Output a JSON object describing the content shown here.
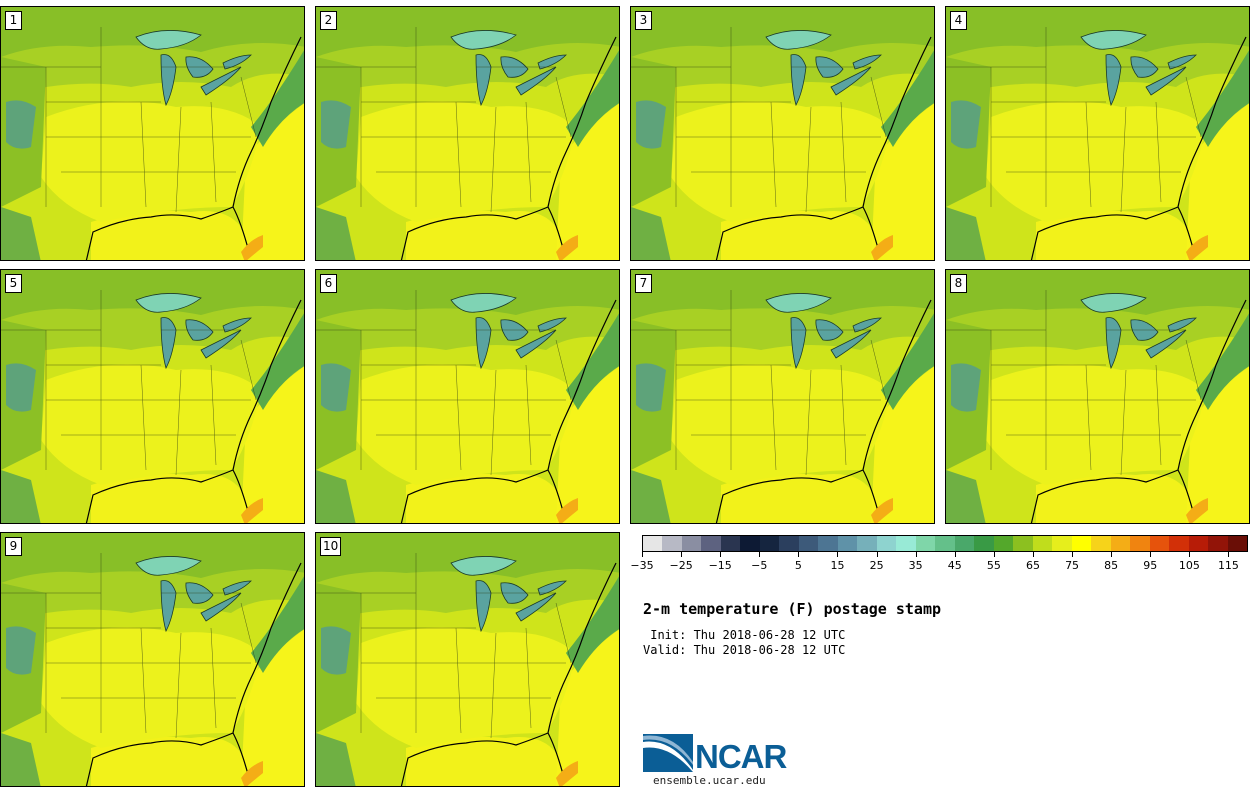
{
  "panels": [
    {
      "label": "1"
    },
    {
      "label": "2"
    },
    {
      "label": "3"
    },
    {
      "label": "4"
    },
    {
      "label": "5"
    },
    {
      "label": "6"
    },
    {
      "label": "7"
    },
    {
      "label": "8"
    },
    {
      "label": "9"
    },
    {
      "label": "10"
    }
  ],
  "colorbar": {
    "colors": [
      "#e6e6e6",
      "#b7b9c5",
      "#8a8ea2",
      "#5d6280",
      "#2a3550",
      "#0d1a34",
      "#15253f",
      "#2b3f5e",
      "#3d5a7a",
      "#4d7593",
      "#5f92a8",
      "#76b0ba",
      "#8ed3cf",
      "#98ead6",
      "#7fd6a9",
      "#64c08a",
      "#4aa86a",
      "#399a45",
      "#54a82b",
      "#8cc020",
      "#c0dd1c",
      "#e6ee1c",
      "#ffff00",
      "#f6d31a",
      "#f4ad16",
      "#f08410",
      "#e6530c",
      "#d23008",
      "#b71c07",
      "#921408",
      "#6a0e06"
    ],
    "tick_labels": [
      "−35",
      "−25",
      "−15",
      "−5",
      "5",
      "15",
      "25",
      "35",
      "45",
      "55",
      "65",
      "75",
      "85",
      "95",
      "105",
      "115"
    ]
  },
  "title": "2-m temperature (F) postage stamp",
  "init": " Init: Thu 2018-06-28 12 UTC",
  "valid": "Valid: Thu 2018-06-28 12 UTC",
  "logo_text": "NCAR",
  "url": "ensemble.ucar.edu"
}
